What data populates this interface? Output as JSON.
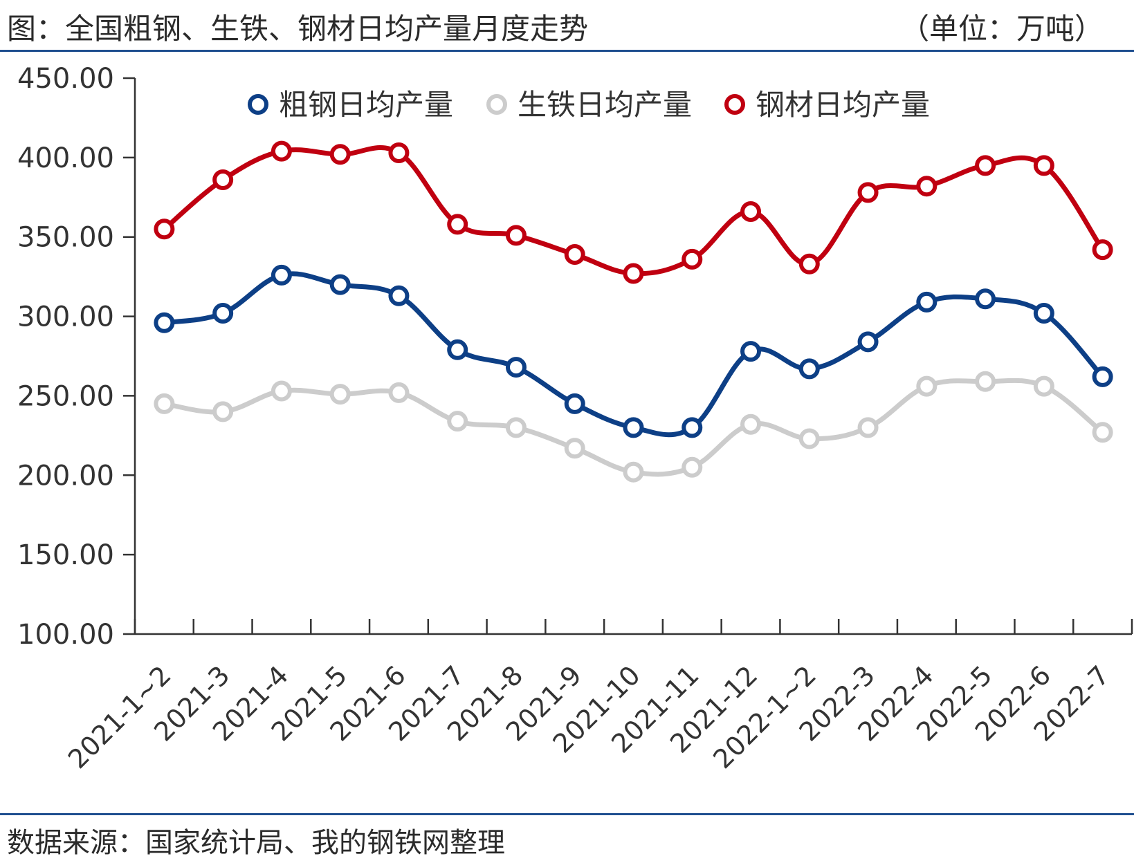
{
  "header": {
    "title": "图：全国粗钢、生铁、钢材日均产量月度走势",
    "unit": "（单位：万吨）"
  },
  "footer": {
    "source": "数据来源：国家统计局、我的钢铁网整理"
  },
  "colors": {
    "crude_steel": "#0d3f86",
    "pig_iron": "#cccccc",
    "steel_products": "#c00010",
    "rule": "#1f4f8f",
    "axis": "#333333"
  },
  "chart_data": {
    "type": "line",
    "title": "",
    "xlabel": "",
    "ylabel": "",
    "ylim": [
      100,
      450
    ],
    "yticks": [
      "100.00",
      "150.00",
      "200.00",
      "250.00",
      "300.00",
      "350.00",
      "400.00",
      "450.00"
    ],
    "categories": [
      "2021-1~2",
      "2021-3",
      "2021-4",
      "2021-5",
      "2021-6",
      "2021-7",
      "2021-8",
      "2021-9",
      "2021-10",
      "2021-11",
      "2021-12",
      "2022-1~2",
      "2022-3",
      "2022-4",
      "2022-5",
      "2022-6",
      "2022-7"
    ],
    "legend_position": "top",
    "grid": false,
    "series": [
      {
        "name": "粗钢日均产量",
        "color_key": "crude_steel",
        "values": [
          296,
          302,
          326,
          320,
          313,
          279,
          268,
          245,
          230,
          230,
          278,
          267,
          284,
          309,
          311,
          302,
          262
        ]
      },
      {
        "name": "生铁日均产量",
        "color_key": "pig_iron",
        "values": [
          245,
          240,
          253,
          251,
          252,
          234,
          230,
          217,
          202,
          205,
          232,
          223,
          230,
          256,
          259,
          256,
          227
        ]
      },
      {
        "name": "钢材日均产量",
        "color_key": "steel_products",
        "values": [
          355,
          386,
          404,
          402,
          403,
          358,
          351,
          339,
          327,
          336,
          366,
          333,
          378,
          382,
          395,
          395,
          342
        ]
      }
    ]
  }
}
